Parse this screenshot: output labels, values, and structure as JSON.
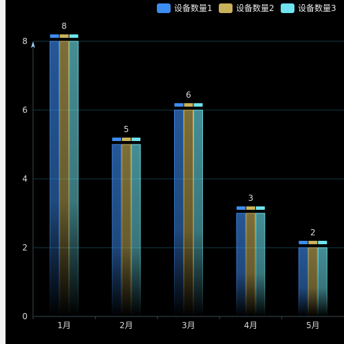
{
  "colors": {
    "background": "#000000",
    "series": [
      "#3d8cf0",
      "#c9b25a",
      "#6fe3ee"
    ],
    "grid": "#123a44",
    "axis": "#3a4a50"
  },
  "chart_data": {
    "type": "bar",
    "categories": [
      "1月",
      "2月",
      "3月",
      "4月",
      "5月"
    ],
    "series": [
      {
        "name": "设备数量1",
        "values": [
          8,
          5,
          6,
          3,
          2
        ]
      },
      {
        "name": "设备数量2",
        "values": [
          8,
          5,
          6,
          3,
          2
        ]
      },
      {
        "name": "设备数量3",
        "values": [
          8,
          5,
          6,
          3,
          2
        ]
      }
    ],
    "value_labels": [
      "8",
      "5",
      "6",
      "3",
      "2"
    ],
    "title": "",
    "xlabel": "",
    "ylabel": "",
    "ylim": [
      0,
      8
    ],
    "yticks": [
      0,
      2,
      4,
      6,
      8
    ],
    "grid": true,
    "legend": "top-right"
  }
}
